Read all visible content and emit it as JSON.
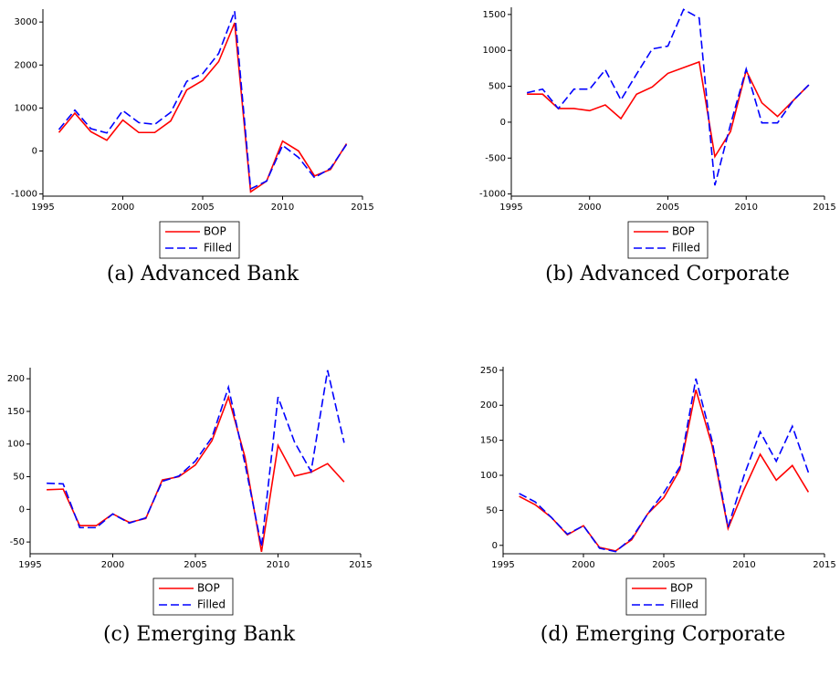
{
  "chart_data": [
    {
      "type": "line",
      "caption": "(a) Advanced Bank",
      "x": [
        1996,
        1997,
        1998,
        1999,
        2000,
        2001,
        2002,
        2003,
        2004,
        2005,
        2006,
        2007,
        2008,
        2009,
        2010,
        2011,
        2012,
        2013,
        2014
      ],
      "xlim": [
        1995,
        2015
      ],
      "xticks": [
        1995,
        2000,
        2005,
        2010,
        2015
      ],
      "ylim": [
        -1050,
        3300
      ],
      "yticks": [
        -1000,
        0,
        1000,
        2000,
        3000
      ],
      "series": [
        {
          "name": "BOP",
          "color": "#ff0000",
          "dashed": false,
          "values": [
            430,
            880,
            450,
            250,
            720,
            430,
            430,
            700,
            1420,
            1640,
            2080,
            2980,
            -950,
            -700,
            230,
            0,
            -580,
            -430,
            170
          ]
        },
        {
          "name": "Filled",
          "color": "#0000ff",
          "dashed": true,
          "values": [
            500,
            950,
            520,
            420,
            940,
            660,
            620,
            900,
            1620,
            1800,
            2270,
            3250,
            -880,
            -700,
            130,
            -150,
            -620,
            -400,
            150
          ]
        }
      ]
    },
    {
      "type": "line",
      "caption": "(b) Advanced Corporate",
      "x": [
        1996,
        1997,
        1998,
        1999,
        2000,
        2001,
        2002,
        2003,
        2004,
        2005,
        2006,
        2007,
        2008,
        2009,
        2010,
        2011,
        2012,
        2013,
        2014
      ],
      "xlim": [
        1995,
        2015
      ],
      "xticks": [
        1995,
        2000,
        2005,
        2010,
        2015
      ],
      "ylim": [
        -1030,
        1600
      ],
      "yticks": [
        -1000,
        -500,
        0,
        500,
        1000,
        1500
      ],
      "series": [
        {
          "name": "BOP",
          "color": "#ff0000",
          "dashed": false,
          "values": [
            390,
            390,
            190,
            190,
            160,
            240,
            50,
            390,
            490,
            680,
            760,
            840,
            -480,
            -130,
            720,
            270,
            80,
            300,
            520
          ]
        },
        {
          "name": "Filled",
          "color": "#0000ff",
          "dashed": true,
          "values": [
            410,
            460,
            190,
            460,
            460,
            730,
            310,
            670,
            1020,
            1060,
            1570,
            1450,
            -880,
            -30,
            740,
            -10,
            -10,
            300,
            520
          ]
        }
      ]
    },
    {
      "type": "line",
      "caption": "(c) Emerging Bank",
      "x": [
        1996,
        1997,
        1998,
        1999,
        2000,
        2001,
        2002,
        2003,
        2004,
        2005,
        2006,
        2007,
        2008,
        2009,
        2010,
        2011,
        2012,
        2013,
        2014
      ],
      "xlim": [
        1995,
        2015
      ],
      "xticks": [
        1995,
        2000,
        2005,
        2010,
        2015
      ],
      "ylim": [
        -68,
        217
      ],
      "yticks": [
        -50,
        0,
        50,
        100,
        150,
        200
      ],
      "series": [
        {
          "name": "BOP",
          "color": "#ff0000",
          "dashed": false,
          "values": [
            30,
            31,
            -25,
            -25,
            -7,
            -20,
            -14,
            45,
            50,
            68,
            105,
            172,
            80,
            -65,
            98,
            51,
            57,
            70,
            42
          ]
        },
        {
          "name": "Filled",
          "color": "#0000ff",
          "dashed": true,
          "values": [
            40,
            39,
            -28,
            -28,
            -7,
            -21,
            -13,
            43,
            51,
            74,
            110,
            187,
            70,
            -57,
            172,
            103,
            58,
            213,
            102
          ]
        }
      ]
    },
    {
      "type": "line",
      "caption": "(d) Emerging Corporate",
      "x": [
        1996,
        1997,
        1998,
        1999,
        2000,
        2001,
        2002,
        2003,
        2004,
        2005,
        2006,
        2007,
        2008,
        2009,
        2010,
        2011,
        2012,
        2013,
        2014
      ],
      "xlim": [
        1995,
        2015
      ],
      "xticks": [
        1995,
        2000,
        2005,
        2010,
        2015
      ],
      "ylim": [
        -12,
        255
      ],
      "yticks": [
        0,
        50,
        100,
        150,
        200,
        250
      ],
      "series": [
        {
          "name": "BOP",
          "color": "#ff0000",
          "dashed": false,
          "values": [
            70,
            58,
            40,
            15,
            28,
            -3,
            -8,
            8,
            45,
            68,
            108,
            222,
            143,
            24,
            80,
            130,
            93,
            114,
            76
          ]
        },
        {
          "name": "Filled",
          "color": "#0000ff",
          "dashed": true,
          "values": [
            74,
            62,
            40,
            16,
            28,
            -4,
            -9,
            10,
            45,
            75,
            112,
            238,
            150,
            26,
            100,
            162,
            120,
            170,
            104
          ]
        }
      ]
    }
  ]
}
